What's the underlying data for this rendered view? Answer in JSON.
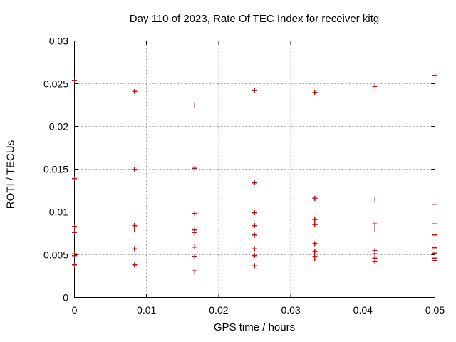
{
  "chart_data": {
    "type": "scatter",
    "title": "Day 110 of 2023, Rate Of TEC Index for receiver kitg",
    "xlabel": "GPS time / hours",
    "ylabel": "ROTI / TECUs",
    "xlim": [
      0,
      0.05
    ],
    "ylim": [
      0,
      0.03
    ],
    "xticks": {
      "values": [
        0,
        0.01,
        0.02,
        0.03,
        0.04,
        0.05
      ],
      "labels": [
        "0",
        "0.01",
        "0.02",
        "0.03",
        "0.04",
        "0.05"
      ]
    },
    "yticks": {
      "values": [
        0,
        0.005,
        0.01,
        0.015,
        0.02,
        0.025,
        0.03
      ],
      "labels": [
        "0",
        "0.005",
        "0.01",
        "0.015",
        "0.02",
        "0.025",
        "0.03"
      ]
    },
    "grid": true,
    "legend_position": "none",
    "marker": {
      "shape": "plus",
      "size": 7
    },
    "series": [
      {
        "name": "ROTI",
        "points": [
          [
            0,
            0.0254
          ],
          [
            0,
            0.0139
          ],
          [
            0,
            0.0083
          ],
          [
            0,
            0.008
          ],
          [
            0,
            0.0076
          ],
          [
            0,
            0.0051
          ],
          [
            0,
            0.0049
          ],
          [
            0,
            0.0038
          ],
          [
            0.008333,
            0.0241
          ],
          [
            0.008333,
            0.015
          ],
          [
            0.008333,
            0.0084
          ],
          [
            0.008333,
            0.008
          ],
          [
            0.008333,
            0.0057
          ],
          [
            0.008333,
            0.0038
          ],
          [
            0.016667,
            0.0225
          ],
          [
            0.016667,
            0.0151
          ],
          [
            0.016667,
            0.0098
          ],
          [
            0.016667,
            0.0079
          ],
          [
            0.016667,
            0.0076
          ],
          [
            0.016667,
            0.0059
          ],
          [
            0.016667,
            0.0048
          ],
          [
            0.016667,
            0.0031
          ],
          [
            0.025,
            0.0242
          ],
          [
            0.025,
            0.0134
          ],
          [
            0.025,
            0.0099
          ],
          [
            0.025,
            0.0084
          ],
          [
            0.025,
            0.0073
          ],
          [
            0.025,
            0.0057
          ],
          [
            0.025,
            0.0049
          ],
          [
            0.025,
            0.0037
          ],
          [
            0.033333,
            0.024
          ],
          [
            0.033333,
            0.0116
          ],
          [
            0.033333,
            0.0091
          ],
          [
            0.033333,
            0.0085
          ],
          [
            0.033333,
            0.0063
          ],
          [
            0.033333,
            0.0054
          ],
          [
            0.033333,
            0.0048
          ],
          [
            0.033333,
            0.0045
          ],
          [
            0.041667,
            0.0247
          ],
          [
            0.041667,
            0.0115
          ],
          [
            0.041667,
            0.0086
          ],
          [
            0.041667,
            0.008
          ],
          [
            0.041667,
            0.0055
          ],
          [
            0.041667,
            0.0051
          ],
          [
            0.041667,
            0.0046
          ],
          [
            0.041667,
            0.0042
          ],
          [
            0.05,
            0.026
          ],
          [
            0.05,
            0.0109
          ],
          [
            0.05,
            0.0086
          ],
          [
            0.05,
            0.0073
          ],
          [
            0.05,
            0.0058
          ],
          [
            0.05,
            0.0052
          ],
          [
            0.05,
            0.0046
          ],
          [
            0.05,
            0.0043
          ]
        ]
      }
    ]
  },
  "colors": {
    "background": "#ffffff",
    "border": "#000000",
    "grid": "#9e9e9e",
    "text": "#000000",
    "marker": "#ee0000"
  }
}
